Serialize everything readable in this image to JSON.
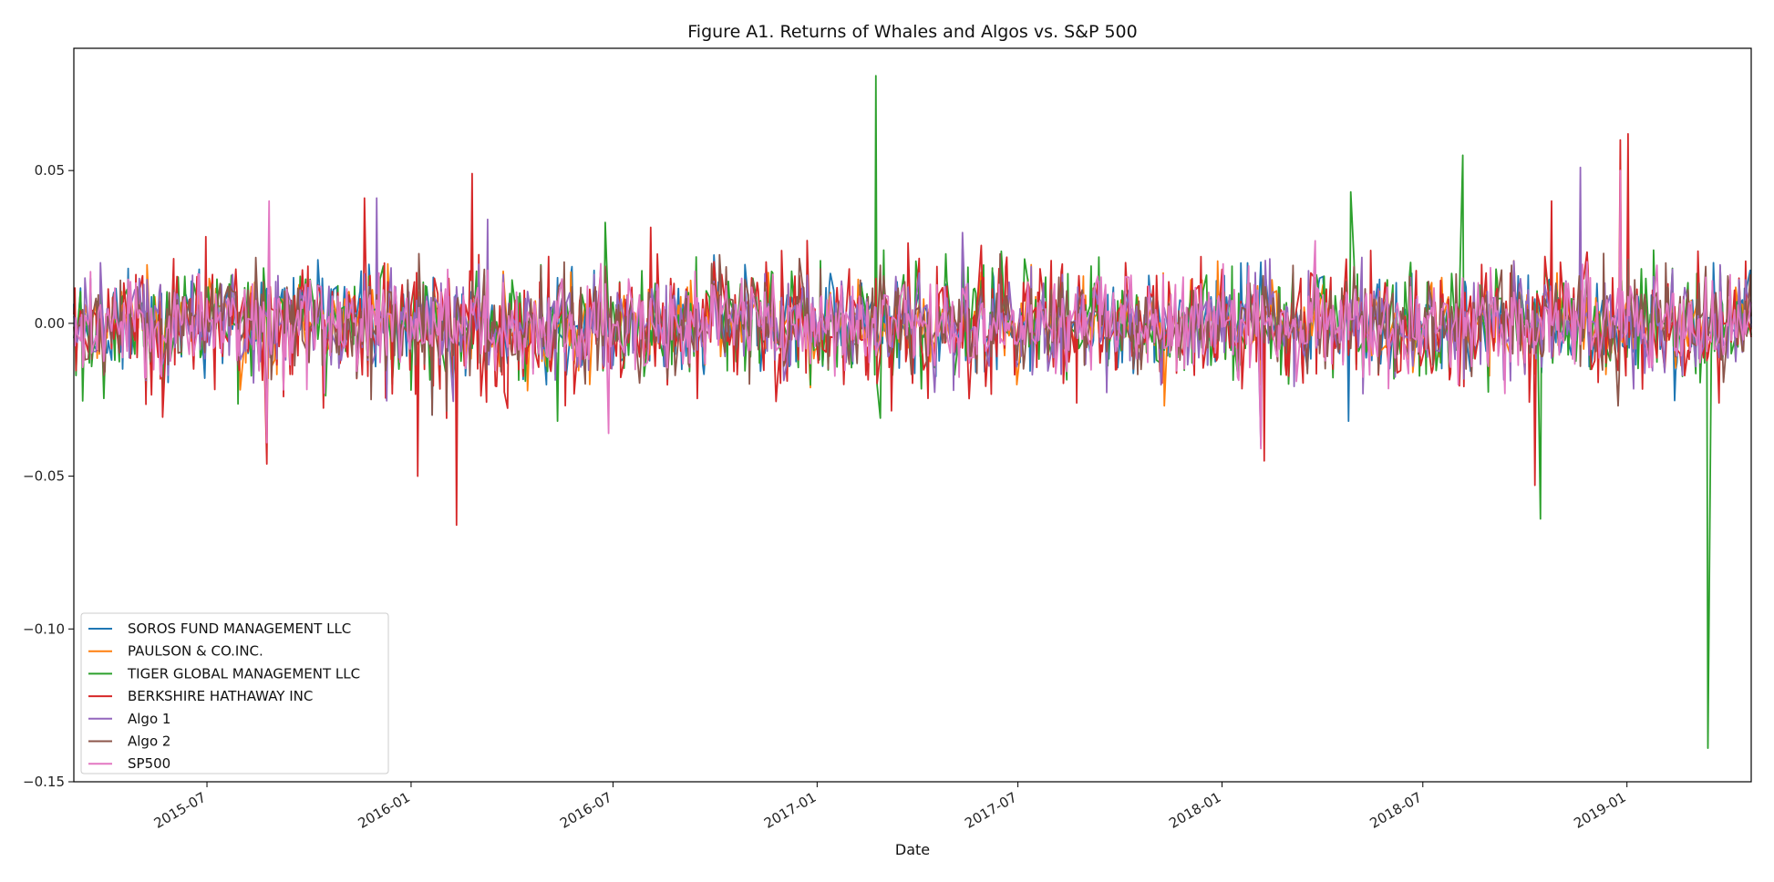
{
  "chart_data": {
    "type": "line",
    "title": "Figure A1. Returns of Whales and Algos vs. S&P 500",
    "xlabel": "Date",
    "ylabel": "",
    "xlim": [
      "2015-03-03",
      "2019-04-23"
    ],
    "ylim": [
      -0.15,
      0.09
    ],
    "yticks": [
      0.05,
      0.0,
      -0.05,
      -0.1,
      -0.15
    ],
    "ytick_labels": [
      "0.05",
      "0.00",
      "−0.05",
      "−0.10",
      "−0.15"
    ],
    "xticks": [
      "2015-07-01",
      "2016-01-01",
      "2016-07-01",
      "2017-01-01",
      "2017-07-01",
      "2018-01-01",
      "2018-07-01",
      "2019-01-01"
    ],
    "xtick_labels": [
      "2015-07",
      "2016-01",
      "2016-07",
      "2017-01",
      "2017-07",
      "2018-01",
      "2018-07",
      "2019-01"
    ],
    "legend_position": "lower-left",
    "grid": false,
    "series": [
      {
        "name": "SOROS FUND MANAGEMENT LLC",
        "color": "#1f77b4",
        "scale": 0.008,
        "spikes": [
          [
            "2018-04-25",
            -0.032
          ],
          [
            "2016-01-20",
            -0.03
          ],
          [
            "2018-02-05",
            0.02
          ]
        ]
      },
      {
        "name": "PAULSON & CO.INC.",
        "color": "#ff7f0e",
        "scale": 0.007,
        "spikes": [
          [
            "2017-11-10",
            -0.027
          ],
          [
            "2016-06-10",
            -0.02
          ],
          [
            "2016-04-15",
            -0.022
          ],
          [
            "2015-08-25",
            -0.018
          ]
        ]
      },
      {
        "name": "TIGER GLOBAL MANAGEMENT LLC",
        "color": "#2ca02c",
        "scale": 0.009,
        "spikes": [
          [
            "2017-02-23",
            0.081
          ],
          [
            "2017-02-27",
            -0.031
          ],
          [
            "2018-08-06",
            0.055
          ],
          [
            "2018-04-27",
            0.043
          ],
          [
            "2019-03-15",
            -0.139
          ],
          [
            "2019-03-18",
            -0.01
          ],
          [
            "2018-10-15",
            -0.064
          ],
          [
            "2016-06-24",
            0.033
          ],
          [
            "2016-05-12",
            -0.032
          ]
        ]
      },
      {
        "name": "BERKSHIRE HATHAWAY INC",
        "color": "#d62728",
        "scale": 0.011,
        "spikes": [
          [
            "2016-02-11",
            -0.066
          ],
          [
            "2016-02-25",
            0.049
          ],
          [
            "2015-08-24",
            -0.046
          ],
          [
            "2019-01-02",
            0.062
          ],
          [
            "2018-12-26",
            0.06
          ],
          [
            "2018-10-10",
            -0.053
          ],
          [
            "2018-02-08",
            -0.045
          ],
          [
            "2016-01-07",
            -0.05
          ],
          [
            "2015-11-20",
            0.041
          ],
          [
            "2018-10-25",
            0.04
          ]
        ]
      },
      {
        "name": "Algo 1",
        "color": "#9467bd",
        "scale": 0.008,
        "spikes": [
          [
            "2018-11-20",
            0.051
          ],
          [
            "2015-12-01",
            0.041
          ],
          [
            "2016-03-10",
            0.034
          ],
          [
            "2018-02-05",
            -0.04
          ]
        ]
      },
      {
        "name": "Algo 2",
        "color": "#8c564b",
        "scale": 0.008,
        "spikes": [
          [
            "2016-01-20",
            -0.03
          ],
          [
            "2015-08-24",
            -0.035
          ],
          [
            "2018-12-24",
            -0.027
          ]
        ]
      },
      {
        "name": "SP500",
        "color": "#e377c2",
        "scale": 0.008,
        "spikes": [
          [
            "2015-08-26",
            0.04
          ],
          [
            "2015-08-24",
            -0.039
          ],
          [
            "2018-12-26",
            0.05
          ],
          [
            "2018-02-05",
            -0.041
          ],
          [
            "2016-06-27",
            -0.036
          ],
          [
            "2018-03-26",
            0.027
          ]
        ]
      }
    ]
  }
}
